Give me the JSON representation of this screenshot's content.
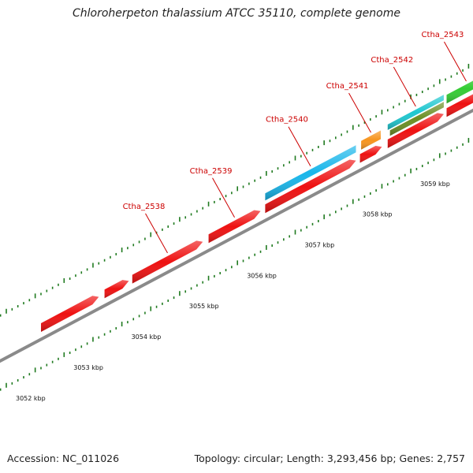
{
  "title": "Chloroherpeton thalassium ATCC 35110, complete genome",
  "footer": {
    "accession": "Accession: NC_011026",
    "summary": "Topology: circular; Length: 3,293,456 bp; Genes: 2,757"
  },
  "axis": {
    "unit": "kbp",
    "ticks": [
      {
        "kbp": 3052,
        "label": "3052 kbp"
      },
      {
        "kbp": 3053,
        "label": "3053 kbp"
      },
      {
        "kbp": 3054,
        "label": "3054 kbp"
      },
      {
        "kbp": 3055,
        "label": "3055 kbp"
      },
      {
        "kbp": 3056,
        "label": "3056 kbp"
      },
      {
        "kbp": 3057,
        "label": "3057 kbp"
      },
      {
        "kbp": 3058,
        "label": "3058 kbp"
      },
      {
        "kbp": 3059,
        "label": "3059 kbp"
      }
    ]
  },
  "colors": {
    "cds": "#ee1111",
    "label": "#cc0000",
    "backbone": "#8a8a8a",
    "tick": "#1f7a1f",
    "blue": "#19b6ea",
    "orange": "#f7941d",
    "cyan": "#1fc7cf",
    "olive": "#6b8e23",
    "green": "#33cc33"
  },
  "genes": [
    {
      "name": "Ctha_2538",
      "start": 3052.6,
      "end": 3053.6,
      "track": "cds",
      "strand": 1,
      "labeled": false
    },
    {
      "name": "Ctha_2538",
      "start": 3053.7,
      "end": 3054.12,
      "track": "cds",
      "strand": 1,
      "labeled": false
    },
    {
      "name": "Ctha_2538",
      "start": 3054.18,
      "end": 3055.4,
      "track": "cds",
      "strand": 1,
      "labeled": true
    },
    {
      "name": "Ctha_2539",
      "start": 3055.5,
      "end": 3056.4,
      "track": "cds",
      "strand": 1,
      "labeled": true
    },
    {
      "name": "Ctha_2540",
      "start": 3056.48,
      "end": 3058.05,
      "track": "cds",
      "strand": 1,
      "labeled": false
    },
    {
      "name": "Ctha_2540",
      "start": 3056.48,
      "end": 3058.05,
      "track": "blue",
      "strand": 0,
      "labeled": true
    },
    {
      "name": "Ctha_2541",
      "start": 3058.12,
      "end": 3058.5,
      "track": "cds",
      "strand": 1,
      "labeled": false
    },
    {
      "name": "Ctha_2541",
      "start": 3058.14,
      "end": 3058.48,
      "track": "orange",
      "strand": 0,
      "labeled": true
    },
    {
      "name": "Ctha_2542",
      "start": 3058.6,
      "end": 3059.57,
      "track": "cds",
      "strand": 1,
      "labeled": false
    },
    {
      "name": "Ctha_2542",
      "start": 3058.6,
      "end": 3059.57,
      "track": "cyan",
      "strand": 0,
      "labeled": true
    },
    {
      "name": "Ctha_2542",
      "start": 3058.64,
      "end": 3059.57,
      "track": "olive",
      "strand": 0,
      "labeled": false
    },
    {
      "name": "Ctha_2543",
      "start": 3059.62,
      "end": 3060.3,
      "track": "cds",
      "strand": 1,
      "labeled": false
    },
    {
      "name": "Ctha_2543",
      "start": 3059.62,
      "end": 3060.3,
      "track": "green",
      "strand": 0,
      "labeled": true
    }
  ]
}
